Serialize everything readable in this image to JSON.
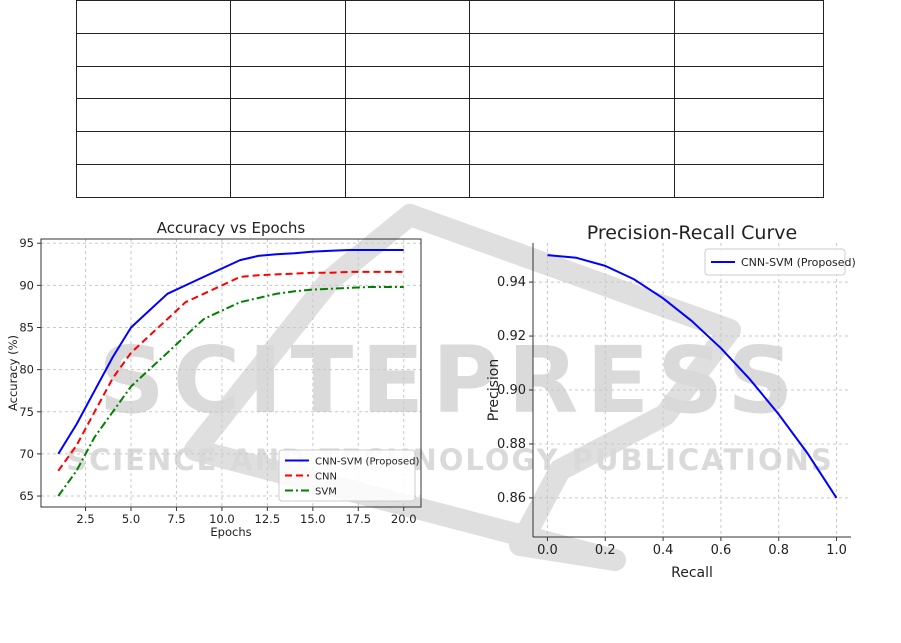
{
  "table": {
    "rows": 6,
    "cols": 5
  },
  "watermark": {
    "text": "SCITEPRESS",
    "subtext": "SCIENCE AND TECHNOLOGY PUBLICATIONS",
    "color": "#d9d9d9"
  },
  "chart_data": [
    {
      "type": "line",
      "title": "Accuracy vs Epochs",
      "xlabel": "Epochs",
      "ylabel": "Accuracy (%)",
      "xlim": [
        0.05,
        20.95
      ],
      "ylim": [
        63.7,
        95.5
      ],
      "xticks": [
        2.5,
        5.0,
        7.5,
        10.0,
        12.5,
        15.0,
        17.5,
        20.0
      ],
      "yticks": [
        65,
        70,
        75,
        80,
        85,
        90,
        95
      ],
      "grid": true,
      "legend_position": "lower-right",
      "x": [
        1,
        2,
        3,
        4,
        5,
        6,
        7,
        8,
        9,
        10,
        11,
        12,
        13,
        14,
        15,
        16,
        17,
        18,
        19,
        20
      ],
      "series": [
        {
          "name": "CNN-SVM (Proposed)",
          "color": "#0000ff",
          "style": "solid",
          "values": [
            70,
            73.5,
            77.5,
            81.5,
            85,
            87,
            89,
            90,
            91,
            92,
            93,
            93.5,
            93.7,
            93.8,
            94,
            94.1,
            94.2,
            94.2,
            94.2,
            94.2
          ]
        },
        {
          "name": "CNN",
          "color": "#ff0000",
          "style": "dashed",
          "values": [
            68,
            71,
            75,
            79,
            82,
            84,
            86,
            88,
            89,
            90,
            91,
            91.2,
            91.3,
            91.4,
            91.5,
            91.5,
            91.6,
            91.6,
            91.6,
            91.6
          ]
        },
        {
          "name": "SVM",
          "color": "#008000",
          "style": "dashdot",
          "values": [
            65,
            68,
            72,
            75,
            78,
            80,
            82,
            84,
            86,
            87,
            88,
            88.5,
            89,
            89.3,
            89.5,
            89.6,
            89.7,
            89.8,
            89.8,
            89.8
          ]
        }
      ]
    },
    {
      "type": "line",
      "title": "Precision-Recall Curve",
      "xlabel": "Recall",
      "ylabel": "Precision",
      "xlim": [
        -0.05,
        1.05
      ],
      "ylim": [
        0.8455,
        0.9545
      ],
      "xticks": [
        0.0,
        0.2,
        0.4,
        0.6,
        0.8,
        1.0
      ],
      "yticks": [
        0.86,
        0.88,
        0.9,
        0.92,
        0.94
      ],
      "grid": true,
      "legend_position": "top-right",
      "x": [
        0.0,
        0.1,
        0.2,
        0.3,
        0.4,
        0.5,
        0.6,
        0.7,
        0.8,
        0.9,
        1.0
      ],
      "series": [
        {
          "name": "CNN-SVM (Proposed)",
          "color": "#0000ff",
          "style": "solid",
          "values": [
            0.95,
            0.949,
            0.946,
            0.941,
            0.934,
            0.9255,
            0.9155,
            0.904,
            0.891,
            0.8765,
            0.86
          ]
        }
      ]
    }
  ]
}
